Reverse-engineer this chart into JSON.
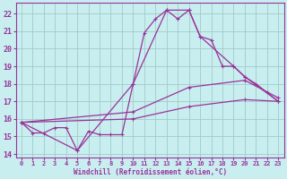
{
  "xlabel": "Windchill (Refroidissement éolien,°C)",
  "background_color": "#c8eef0",
  "grid_color": "#a0ccc8",
  "line_color": "#993399",
  "xlim": [
    -0.5,
    23.5
  ],
  "ylim": [
    13.8,
    22.6
  ],
  "yticks": [
    14,
    15,
    16,
    17,
    18,
    19,
    20,
    21,
    22
  ],
  "xticks": [
    0,
    1,
    2,
    3,
    4,
    5,
    6,
    7,
    8,
    9,
    10,
    11,
    12,
    13,
    14,
    15,
    16,
    17,
    18,
    19,
    20,
    21,
    22,
    23
  ],
  "series": [
    {
      "x": [
        0,
        1,
        2,
        3,
        4,
        5,
        6,
        7,
        8,
        9,
        10,
        11,
        12,
        13,
        14,
        15,
        16,
        17,
        18,
        19,
        20,
        21,
        22,
        23
      ],
      "y": [
        15.8,
        15.2,
        15.2,
        15.5,
        15.5,
        14.2,
        15.3,
        15.1,
        15.1,
        15.1,
        18.0,
        20.9,
        21.7,
        22.2,
        21.7,
        22.2,
        20.7,
        20.5,
        19.0,
        19.0,
        18.4,
        18.0,
        17.5,
        17.0
      ]
    },
    {
      "x": [
        0,
        5,
        10,
        13,
        15,
        16,
        19,
        20,
        23
      ],
      "y": [
        15.8,
        14.2,
        18.0,
        22.2,
        22.2,
        20.7,
        19.0,
        18.4,
        17.0
      ]
    },
    {
      "x": [
        0,
        10,
        15,
        20,
        23
      ],
      "y": [
        15.8,
        16.4,
        17.8,
        18.2,
        17.2
      ]
    },
    {
      "x": [
        0,
        10,
        15,
        20,
        23
      ],
      "y": [
        15.8,
        16.0,
        16.7,
        17.1,
        17.0
      ]
    }
  ]
}
